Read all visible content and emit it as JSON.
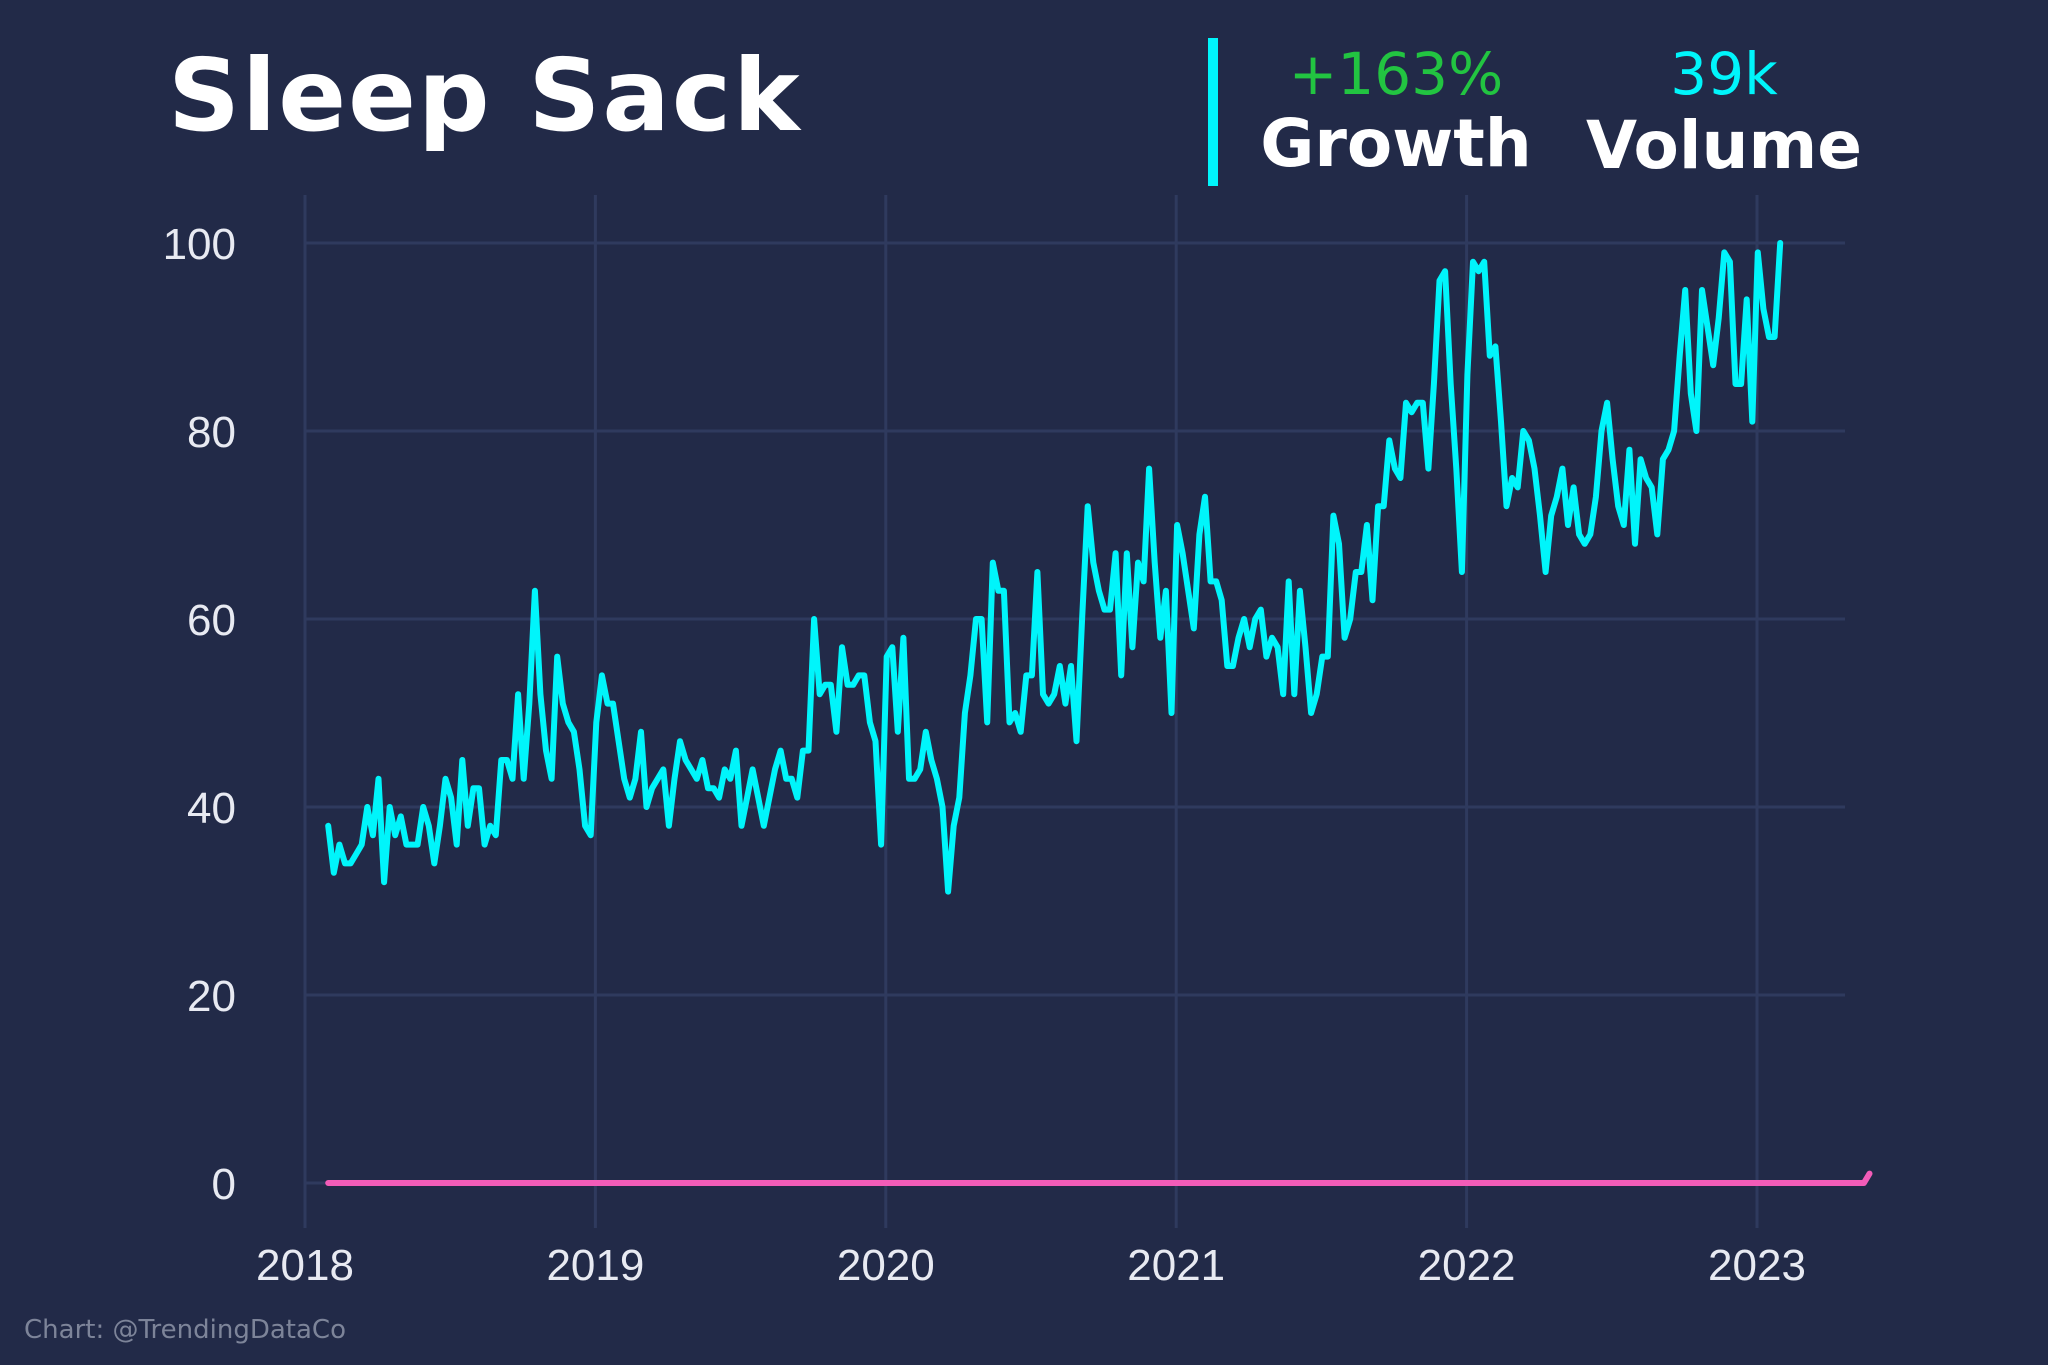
{
  "colors": {
    "background": "#222a48",
    "grid": "#2f3a5e",
    "primary_line": "#00f5fb",
    "secondary_line": "#f25cb8",
    "growth": "#22c441",
    "volume": "#00f5fb",
    "divider": "#00f5fb"
  },
  "header": {
    "title": "Sleep Sack",
    "growth_value": "+163%",
    "growth_label": "Growth",
    "volume_value": "39k",
    "volume_label": "Volume"
  },
  "footer": {
    "credit": "Chart: @TrendingDataCo"
  },
  "chart_data": {
    "type": "line",
    "title": "Sleep Sack",
    "xlabel": "",
    "ylabel": "",
    "xlim": [
      2018,
      2023.3
    ],
    "ylim": [
      0,
      100
    ],
    "x_ticks": [
      2018,
      2019,
      2020,
      2021,
      2022,
      2023
    ],
    "y_ticks": [
      0,
      20,
      40,
      60,
      80,
      100
    ],
    "grid": true,
    "series": [
      {
        "x_start": 2018.08,
        "x_step": 0.01923,
        "values": [
          38,
          33,
          36,
          34,
          34,
          35,
          36,
          40,
          37,
          43,
          32,
          40,
          37,
          39,
          36,
          36,
          36,
          40,
          38,
          34,
          38,
          43,
          41,
          36,
          45,
          38,
          42,
          42,
          36,
          38,
          37,
          45,
          45,
          43,
          52,
          43,
          51,
          63,
          52,
          46,
          43,
          56,
          51,
          49,
          48,
          44,
          38,
          37,
          49,
          54,
          51,
          51,
          47,
          43,
          41,
          43,
          48,
          40,
          42,
          43,
          44,
          38,
          43,
          47,
          45,
          44,
          43,
          45,
          42,
          42,
          41,
          44,
          43,
          46,
          38,
          41,
          44,
          41,
          38,
          41,
          44,
          46,
          43,
          43,
          41,
          46,
          46,
          60,
          52,
          53,
          53,
          48,
          57,
          53,
          53,
          54,
          54,
          49,
          47,
          36,
          56,
          57,
          48,
          58,
          43,
          43,
          44,
          48,
          45,
          43,
          40,
          31,
          38,
          41,
          50,
          54,
          60,
          60,
          49,
          66,
          63,
          63,
          49,
          50,
          48,
          54,
          54,
          65,
          52,
          51,
          52,
          55,
          51,
          55,
          47,
          60,
          72,
          66,
          63,
          61,
          61,
          67,
          54,
          67,
          57,
          66,
          64,
          76,
          66,
          58,
          63,
          50,
          70,
          67,
          63,
          59,
          69,
          73,
          64,
          64,
          62,
          55,
          55,
          58,
          60,
          57,
          60,
          61,
          56,
          58,
          57,
          52,
          64,
          52,
          63,
          57,
          50,
          52,
          56,
          56,
          71,
          68,
          58,
          60,
          65,
          65,
          70,
          62,
          72,
          72,
          79,
          76,
          75,
          83,
          82,
          83,
          83,
          76,
          85,
          96,
          97,
          85,
          76,
          65,
          86,
          98,
          97,
          98,
          88,
          89,
          81,
          72,
          75,
          74,
          80,
          79,
          76,
          71,
          65,
          71,
          73,
          76,
          70,
          74,
          69,
          68,
          69,
          73,
          80,
          83,
          77,
          72,
          70,
          78,
          68,
          77,
          75,
          74,
          69,
          77,
          78,
          80,
          88,
          95,
          84,
          80,
          95,
          91,
          87,
          92,
          99,
          98,
          85,
          85,
          94,
          81,
          99,
          93,
          90,
          90,
          100
        ]
      },
      {
        "x_start": 2018.08,
        "x_step": 0.01923,
        "values": [
          0,
          0,
          0,
          0,
          0,
          0,
          0,
          0,
          0,
          0,
          0,
          0,
          0,
          0,
          0,
          0,
          0,
          0,
          0,
          0,
          0,
          0,
          0,
          0,
          0,
          0,
          0,
          0,
          0,
          0,
          0,
          0,
          0,
          0,
          0,
          0,
          0,
          0,
          0,
          0,
          0,
          0,
          0,
          0,
          0,
          0,
          0,
          0,
          0,
          0,
          0,
          0,
          0,
          0,
          0,
          0,
          0,
          0,
          0,
          0,
          0,
          0,
          0,
          0,
          0,
          0,
          0,
          0,
          0,
          0,
          0,
          0,
          0,
          0,
          0,
          0,
          0,
          0,
          0,
          0,
          0,
          0,
          0,
          0,
          0,
          0,
          0,
          0,
          0,
          0,
          0,
          0,
          0,
          0,
          0,
          0,
          0,
          0,
          0,
          0,
          0,
          0,
          0,
          0,
          0,
          0,
          0,
          0,
          0,
          0,
          0,
          0,
          0,
          0,
          0,
          0,
          0,
          0,
          0,
          0,
          0,
          0,
          0,
          0,
          0,
          0,
          0,
          0,
          0,
          0,
          0,
          0,
          0,
          0,
          0,
          0,
          0,
          0,
          0,
          0,
          0,
          0,
          0,
          0,
          0,
          0,
          0,
          0,
          0,
          0,
          0,
          0,
          0,
          0,
          0,
          0,
          0,
          0,
          0,
          0,
          0,
          0,
          0,
          0,
          0,
          0,
          0,
          0,
          0,
          0,
          0,
          0,
          0,
          0,
          0,
          0,
          0,
          0,
          0,
          0,
          0,
          0,
          0,
          0,
          0,
          0,
          0,
          0,
          0,
          0,
          0,
          0,
          0,
          0,
          0,
          0,
          0,
          0,
          0,
          0,
          0,
          0,
          0,
          0,
          0,
          0,
          0,
          0,
          0,
          0,
          0,
          0,
          0,
          0,
          0,
          0,
          0,
          0,
          0,
          0,
          0,
          0,
          0,
          0,
          0,
          0,
          0,
          0,
          0,
          0,
          0,
          0,
          0,
          0,
          0,
          0,
          0,
          0,
          0,
          0,
          0,
          0,
          0,
          0,
          0,
          0,
          0,
          0,
          0,
          0,
          0,
          0,
          0,
          0,
          0,
          0,
          0,
          0,
          0,
          0,
          0,
          0,
          0,
          0,
          0,
          0,
          0,
          0,
          0,
          0,
          0,
          0,
          0,
          0,
          0,
          0,
          1
        ]
      }
    ]
  }
}
